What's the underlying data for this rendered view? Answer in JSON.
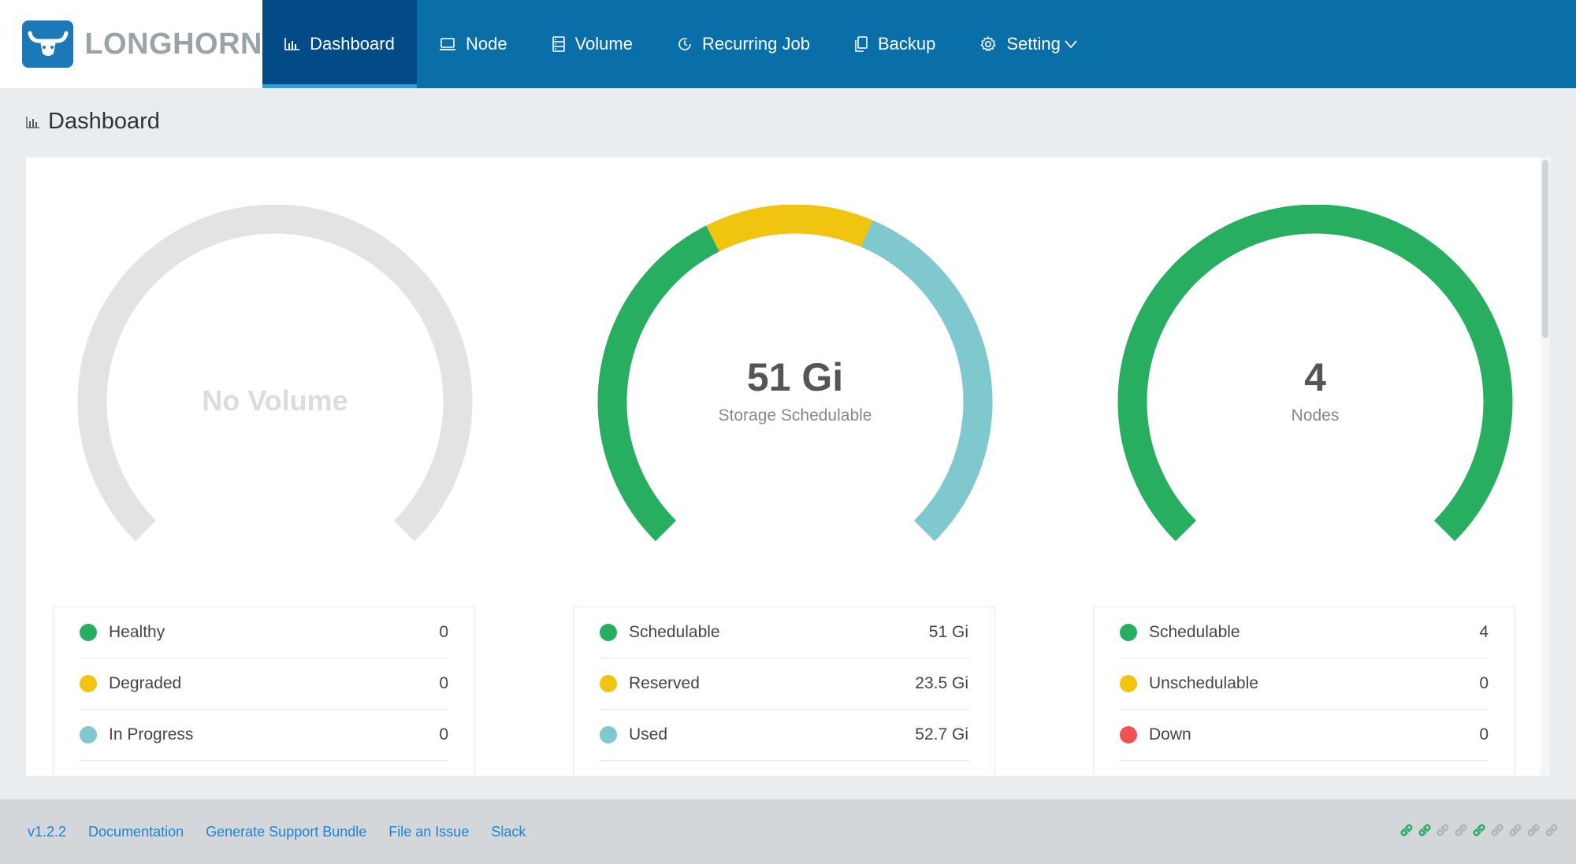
{
  "app": {
    "logo_text": "LONGHORN"
  },
  "nav": {
    "items": [
      {
        "label": "Dashboard",
        "icon": "bar-chart-icon",
        "active": true
      },
      {
        "label": "Node",
        "icon": "laptop-icon"
      },
      {
        "label": "Volume",
        "icon": "database-icon"
      },
      {
        "label": "Recurring Job",
        "icon": "clock-icon"
      },
      {
        "label": "Backup",
        "icon": "copy-icon"
      },
      {
        "label": "Setting",
        "icon": "gear-icon",
        "has_dropdown": true
      }
    ]
  },
  "page": {
    "title": "Dashboard"
  },
  "colors": {
    "green": "#27ae60",
    "yellow": "#f1c40f",
    "teal": "#7ec8ce",
    "red": "#ef5350",
    "gray": "#e2e3e5"
  },
  "volume_gauge": {
    "center_text": "No Volume",
    "legend": [
      {
        "label": "Healthy",
        "value": "0",
        "color": "#27ae60"
      },
      {
        "label": "Degraded",
        "value": "0",
        "color": "#f1c40f"
      },
      {
        "label": "In Progress",
        "value": "0",
        "color": "#7ec8ce"
      }
    ]
  },
  "storage_gauge": {
    "value": "51 Gi",
    "subtitle": "Storage Schedulable",
    "legend": [
      {
        "label": "Schedulable",
        "value": "51 Gi",
        "color": "#27ae60"
      },
      {
        "label": "Reserved",
        "value": "23.5 Gi",
        "color": "#f1c40f"
      },
      {
        "label": "Used",
        "value": "52.7 Gi",
        "color": "#7ec8ce"
      }
    ]
  },
  "node_gauge": {
    "value": "4",
    "subtitle": "Nodes",
    "legend": [
      {
        "label": "Schedulable",
        "value": "4",
        "color": "#27ae60"
      },
      {
        "label": "Unschedulable",
        "value": "0",
        "color": "#f1c40f"
      },
      {
        "label": "Down",
        "value": "0",
        "color": "#ef5350"
      }
    ]
  },
  "footer": {
    "version": "v1.2.2",
    "documentation": "Documentation",
    "support_bundle": "Generate Support Bundle",
    "file_issue": "File an Issue",
    "slack": "Slack",
    "link_status": [
      "connected",
      "connected",
      "disconnected",
      "disconnected",
      "connected",
      "disconnected",
      "disconnected",
      "disconnected",
      "disconnected"
    ]
  }
}
